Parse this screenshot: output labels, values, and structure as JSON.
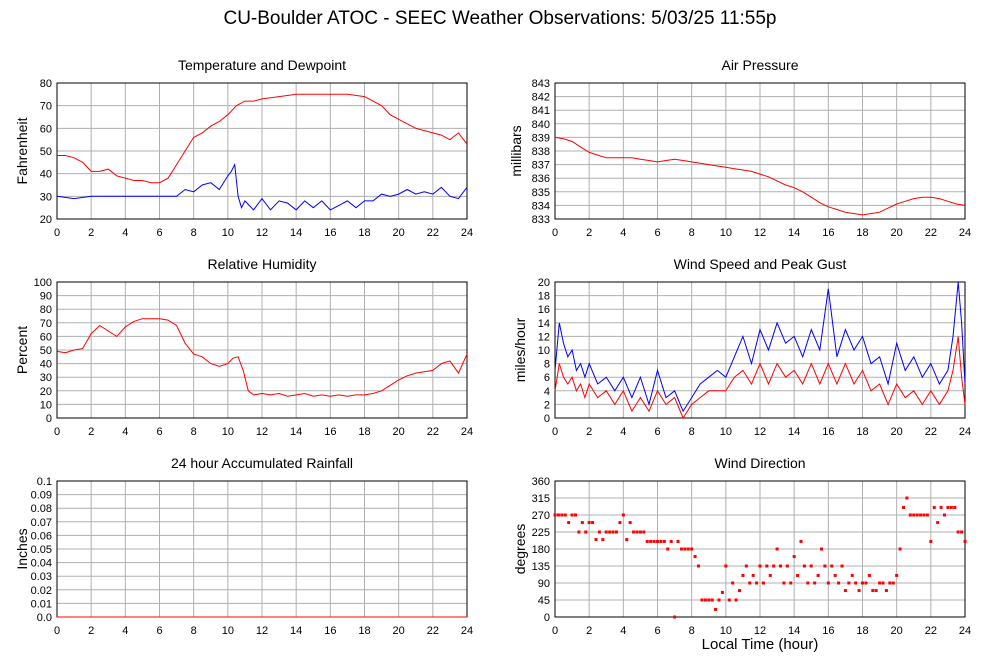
{
  "title": "CU-Boulder ATOC - SEEC Weather Observations: 5/03/25 11:55p",
  "x_axis_label": "Local Time (hour)",
  "colors": {
    "red": "#ff0000",
    "blue": "#0000ff",
    "grid": "#b0b0b0"
  },
  "chart_data": [
    {
      "id": "temp",
      "type": "line",
      "title": "Temperature and Dewpoint",
      "ylabel": "Fahrenheit",
      "xlim": [
        0,
        24
      ],
      "ylim": [
        20,
        80
      ],
      "xticks": [
        0,
        2,
        4,
        6,
        8,
        10,
        12,
        14,
        16,
        18,
        20,
        22,
        24
      ],
      "yticks": [
        20,
        30,
        40,
        50,
        60,
        70,
        80
      ],
      "grid": true,
      "series": [
        {
          "color": "#ff0000",
          "x": [
            0,
            0.5,
            1,
            1.5,
            2,
            2.5,
            3,
            3.5,
            4,
            4.5,
            5,
            5.5,
            6,
            6.5,
            7,
            7.5,
            8,
            8.5,
            9,
            9.5,
            10,
            10.5,
            11,
            11.5,
            12,
            13,
            14,
            15,
            16,
            17,
            18,
            18.5,
            19,
            19.5,
            20,
            20.5,
            21,
            21.5,
            22,
            22.5,
            23,
            23.5,
            24
          ],
          "y": [
            48,
            48,
            47,
            45,
            41,
            41,
            42,
            39,
            38,
            37,
            37,
            36,
            36,
            38,
            44,
            50,
            56,
            58,
            61,
            63,
            66,
            70,
            72,
            72,
            73,
            74,
            75,
            75,
            75,
            75,
            74,
            72,
            70,
            66,
            64,
            62,
            60,
            59,
            58,
            57,
            55,
            58,
            53
          ]
        },
        {
          "color": "#0000ff",
          "x": [
            0,
            1,
            2,
            3,
            4,
            5,
            6,
            7,
            7.5,
            8,
            8.5,
            9,
            9.5,
            10,
            10.2,
            10.4,
            10.6,
            10.8,
            11,
            11.5,
            12,
            12.5,
            13,
            13.5,
            14,
            14.5,
            15,
            15.5,
            16,
            16.5,
            17,
            17.5,
            18,
            18.5,
            19,
            19.5,
            20,
            20.5,
            21,
            21.5,
            22,
            22.5,
            23,
            23.5,
            24
          ],
          "y": [
            30,
            29,
            30,
            30,
            30,
            30,
            30,
            30,
            33,
            32,
            35,
            36,
            33,
            39,
            41,
            44,
            30,
            25,
            28,
            24,
            29,
            24,
            28,
            27,
            24,
            28,
            25,
            28,
            24,
            26,
            28,
            25,
            28,
            28,
            31,
            30,
            31,
            33,
            31,
            32,
            31,
            34,
            30,
            29,
            34
          ]
        }
      ]
    },
    {
      "id": "pressure",
      "type": "line",
      "title": "Air Pressure",
      "ylabel": "millibars",
      "xlim": [
        0,
        24
      ],
      "ylim": [
        833,
        843
      ],
      "xticks": [
        0,
        2,
        4,
        6,
        8,
        10,
        12,
        14,
        16,
        18,
        20,
        22,
        24
      ],
      "yticks": [
        833,
        834,
        835,
        836,
        837,
        838,
        839,
        840,
        841,
        842,
        843
      ],
      "grid": true,
      "series": [
        {
          "color": "#ff0000",
          "x": [
            0,
            0.5,
            1,
            1.5,
            2,
            2.5,
            3,
            3.5,
            4,
            4.5,
            5,
            5.5,
            6,
            6.5,
            7,
            7.5,
            8,
            8.5,
            9,
            9.5,
            10,
            10.5,
            11,
            11.5,
            12,
            12.5,
            13,
            13.5,
            14,
            14.5,
            15,
            15.5,
            16,
            16.5,
            17,
            17.5,
            18,
            18.5,
            19,
            19.5,
            20,
            20.5,
            21,
            21.5,
            22,
            22.5,
            23,
            23.5,
            24
          ],
          "y": [
            839,
            838.9,
            838.7,
            838.3,
            837.9,
            837.7,
            837.5,
            837.5,
            837.5,
            837.5,
            837.4,
            837.3,
            837.2,
            837.3,
            837.4,
            837.3,
            837.2,
            837.1,
            837,
            836.9,
            836.8,
            836.7,
            836.6,
            836.5,
            836.3,
            836.1,
            835.8,
            835.5,
            835.3,
            835,
            834.6,
            834.2,
            833.9,
            833.7,
            833.5,
            833.4,
            833.3,
            833.4,
            833.5,
            833.8,
            834.1,
            834.3,
            834.5,
            834.6,
            834.6,
            834.5,
            834.3,
            834.1,
            834
          ]
        }
      ]
    },
    {
      "id": "humidity",
      "type": "line",
      "title": "Relative Humidity",
      "ylabel": "Percent",
      "xlim": [
        0,
        24
      ],
      "ylim": [
        0,
        100
      ],
      "xticks": [
        0,
        2,
        4,
        6,
        8,
        10,
        12,
        14,
        16,
        18,
        20,
        22,
        24
      ],
      "yticks": [
        0,
        10,
        20,
        30,
        40,
        50,
        60,
        70,
        80,
        90,
        100
      ],
      "grid": true,
      "series": [
        {
          "color": "#ff0000",
          "x": [
            0,
            0.5,
            1,
            1.5,
            2,
            2.5,
            3,
            3.5,
            4,
            4.5,
            5,
            5.5,
            6,
            6.5,
            7,
            7.5,
            8,
            8.5,
            9,
            9.5,
            10,
            10.3,
            10.6,
            10.9,
            11.2,
            11.5,
            12,
            12.5,
            13,
            13.5,
            14,
            14.5,
            15,
            15.5,
            16,
            16.5,
            17,
            17.5,
            18,
            18.5,
            19,
            19.5,
            20,
            20.5,
            21,
            21.5,
            22,
            22.5,
            23,
            23.5,
            24
          ],
          "y": [
            49,
            48,
            50,
            51,
            62,
            68,
            64,
            60,
            67,
            71,
            73,
            73,
            73,
            72,
            68,
            55,
            47,
            45,
            40,
            38,
            40,
            44,
            45,
            35,
            20,
            17,
            18,
            17,
            18,
            16,
            17,
            18,
            16,
            17,
            16,
            17,
            16,
            17,
            17,
            18,
            20,
            24,
            28,
            31,
            33,
            34,
            35,
            40,
            42,
            33,
            47
          ]
        }
      ]
    },
    {
      "id": "wind",
      "type": "line",
      "title": "Wind Speed and Peak Gust",
      "ylabel": "miles/hour",
      "xlim": [
        0,
        24
      ],
      "ylim": [
        0,
        20
      ],
      "xticks": [
        0,
        2,
        4,
        6,
        8,
        10,
        12,
        14,
        16,
        18,
        20,
        22,
        24
      ],
      "yticks": [
        0,
        2,
        4,
        6,
        8,
        10,
        12,
        14,
        16,
        18,
        20
      ],
      "grid": true,
      "series": [
        {
          "color": "#0000ff",
          "x": [
            0,
            0.25,
            0.5,
            0.75,
            1,
            1.25,
            1.5,
            1.75,
            2,
            2.5,
            3,
            3.5,
            4,
            4.5,
            5,
            5.5,
            6,
            6.5,
            7,
            7.5,
            8,
            8.5,
            9,
            9.5,
            10,
            10.5,
            11,
            11.5,
            12,
            12.5,
            13,
            13.5,
            14,
            14.5,
            15,
            15.5,
            16,
            16.5,
            17,
            17.5,
            18,
            18.5,
            19,
            19.5,
            20,
            20.5,
            21,
            21.5,
            22,
            22.5,
            23,
            23.3,
            23.6,
            23.8,
            24
          ],
          "y": [
            7,
            14,
            11,
            9,
            10,
            7,
            8,
            6,
            8,
            5,
            6,
            4,
            6,
            3,
            6,
            2,
            7,
            3,
            4,
            1,
            3,
            5,
            6,
            7,
            6,
            9,
            12,
            8,
            13,
            10,
            14,
            11,
            12,
            9,
            13,
            10,
            19,
            9,
            13,
            10,
            12,
            8,
            9,
            5,
            11,
            7,
            9,
            6,
            8,
            5,
            7,
            12,
            20,
            14,
            5
          ]
        },
        {
          "color": "#ff0000",
          "x": [
            0,
            0.25,
            0.5,
            0.75,
            1,
            1.25,
            1.5,
            1.75,
            2,
            2.5,
            3,
            3.5,
            4,
            4.5,
            5,
            5.5,
            6,
            6.5,
            7,
            7.5,
            8,
            8.5,
            9,
            9.5,
            10,
            10.5,
            11,
            11.5,
            12,
            12.5,
            13,
            13.5,
            14,
            14.5,
            15,
            15.5,
            16,
            16.5,
            17,
            17.5,
            18,
            18.5,
            19,
            19.5,
            20,
            20.5,
            21,
            21.5,
            22,
            22.5,
            23,
            23.3,
            23.6,
            23.8,
            24
          ],
          "y": [
            4,
            8,
            6,
            5,
            6,
            4,
            5,
            3,
            5,
            3,
            4,
            2,
            4,
            1,
            3,
            1,
            4,
            2,
            3,
            0,
            2,
            3,
            4,
            4,
            4,
            6,
            7,
            5,
            8,
            5,
            8,
            6,
            7,
            5,
            8,
            5,
            8,
            5,
            8,
            5,
            7,
            4,
            5,
            2,
            5,
            3,
            4,
            2,
            4,
            2,
            4,
            7,
            12,
            6,
            2
          ]
        }
      ]
    },
    {
      "id": "rain",
      "type": "line",
      "title": "24 hour Accumulated Rainfall",
      "ylabel": "Inches",
      "xlim": [
        0,
        24
      ],
      "ylim": [
        0,
        0.1
      ],
      "xticks": [
        0,
        2,
        4,
        6,
        8,
        10,
        12,
        14,
        16,
        18,
        20,
        22,
        24
      ],
      "yticks": [
        "0.0",
        "0.01",
        "0.02",
        "0.03",
        "0.04",
        "0.05",
        "0.06",
        "0.07",
        "0.08",
        "0.09",
        "0.1"
      ],
      "grid": true,
      "series": [
        {
          "color": "#ff0000",
          "x": [
            0,
            24
          ],
          "y": [
            0,
            0
          ]
        }
      ]
    },
    {
      "id": "direction",
      "type": "scatter",
      "title": "Wind Direction",
      "ylabel": "degrees",
      "xlim": [
        0,
        24
      ],
      "ylim": [
        0,
        360
      ],
      "xticks": [
        0,
        2,
        4,
        6,
        8,
        10,
        12,
        14,
        16,
        18,
        20,
        22,
        24
      ],
      "yticks": [
        0,
        45,
        90,
        135,
        180,
        225,
        270,
        315,
        360
      ],
      "grid": true,
      "series": [
        {
          "color": "#ff0000",
          "x": [
            0,
            0.2,
            0.4,
            0.6,
            0.8,
            1,
            1.2,
            1.4,
            1.6,
            1.8,
            2,
            2.2,
            2.4,
            2.6,
            2.8,
            3,
            3.2,
            3.4,
            3.6,
            3.8,
            4,
            4.2,
            4.4,
            4.6,
            4.8,
            5,
            5.2,
            5.4,
            5.6,
            5.8,
            6,
            6.2,
            6.4,
            6.6,
            6.8,
            7,
            7.2,
            7.4,
            7.6,
            7.8,
            8,
            8.2,
            8.4,
            8.6,
            8.8,
            9,
            9.2,
            9.4,
            9.6,
            9.8,
            10,
            10.2,
            10.4,
            10.6,
            10.8,
            11,
            11.2,
            11.4,
            11.6,
            11.8,
            12,
            12.2,
            12.4,
            12.6,
            12.8,
            13,
            13.2,
            13.4,
            13.6,
            13.8,
            14,
            14.2,
            14.4,
            14.6,
            14.8,
            15,
            15.2,
            15.4,
            15.6,
            15.8,
            16,
            16.2,
            16.4,
            16.6,
            16.8,
            17,
            17.2,
            17.4,
            17.6,
            17.8,
            18,
            18.2,
            18.4,
            18.6,
            18.8,
            19,
            19.2,
            19.4,
            19.6,
            19.8,
            20,
            20.2,
            20.4,
            20.6,
            20.8,
            21,
            21.2,
            21.4,
            21.6,
            21.8,
            22,
            22.2,
            22.4,
            22.6,
            22.8,
            23,
            23.2,
            23.4,
            23.6,
            23.8,
            24
          ],
          "y": [
            270,
            270,
            270,
            270,
            250,
            270,
            270,
            225,
            250,
            225,
            250,
            250,
            205,
            225,
            205,
            225,
            225,
            225,
            225,
            250,
            270,
            205,
            250,
            225,
            225,
            225,
            225,
            200,
            200,
            200,
            200,
            200,
            200,
            180,
            200,
            0,
            200,
            180,
            180,
            180,
            180,
            160,
            135,
            45,
            45,
            45,
            45,
            20,
            45,
            65,
            135,
            45,
            90,
            45,
            70,
            110,
            135,
            90,
            110,
            90,
            135,
            90,
            135,
            110,
            135,
            180,
            135,
            90,
            135,
            90,
            160,
            110,
            200,
            135,
            90,
            135,
            90,
            110,
            180,
            135,
            90,
            135,
            110,
            90,
            135,
            70,
            90,
            110,
            90,
            70,
            90,
            90,
            110,
            70,
            70,
            90,
            90,
            70,
            90,
            90,
            110,
            180,
            290,
            315,
            270,
            270,
            270,
            270,
            270,
            270,
            200,
            290,
            250,
            290,
            270,
            290,
            290,
            290,
            225,
            225,
            200
          ]
        }
      ]
    }
  ]
}
